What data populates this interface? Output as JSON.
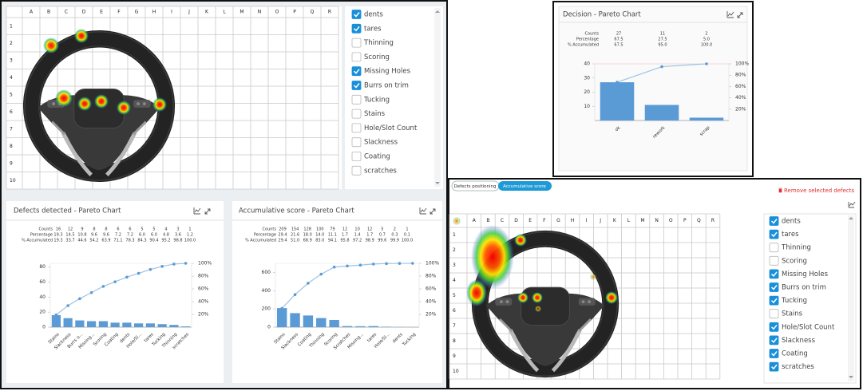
{
  "grid": {
    "columns": [
      "A",
      "B",
      "C",
      "D",
      "E",
      "F",
      "G",
      "H",
      "I",
      "J",
      "K",
      "L",
      "M",
      "N",
      "O",
      "P",
      "Q",
      "R"
    ],
    "rows": [
      1,
      2,
      3,
      4,
      5,
      6,
      7,
      8,
      9,
      10
    ]
  },
  "filters": {
    "labels": [
      "dents",
      "tares",
      "Thinning",
      "Scoring",
      "Missing Holes",
      "Burrs on trim",
      "Tucking",
      "Stains",
      "Hole/Slot Count",
      "Slackness",
      "Coating",
      "scratches"
    ],
    "checked_top": [
      true,
      true,
      false,
      false,
      true,
      true,
      false,
      false,
      false,
      false,
      false,
      false
    ],
    "checked_bottom": [
      true,
      true,
      false,
      false,
      true,
      true,
      true,
      false,
      true,
      true,
      true,
      true
    ]
  },
  "tabs": [
    "Defects positioning",
    "Accumulative score"
  ],
  "remove_button": "Remove selected defects",
  "chart_data": [
    {
      "type": "pareto",
      "title": "Defects detected - Pareto Chart",
      "table_labels": [
        "Counts",
        "Percentage",
        "% Accumulated"
      ],
      "categories": [
        "Stains",
        "Slackness",
        "Burrs o...",
        "Missing...",
        "Scoring",
        "Coating",
        "dents",
        "Hole/Sl...",
        "tares",
        "Tucking",
        "Thinning",
        "scratches"
      ],
      "percentages": [
        "19.3",
        "14.5",
        "10.8",
        "9.6",
        "9.6",
        "7.2",
        "7.2",
        "6.0",
        "6.0",
        "4.8",
        "3.6",
        "1.2"
      ],
      "series": [
        {
          "name": "Counts",
          "color": "#5b9bd5",
          "values": [
            16,
            12,
            9,
            8,
            8,
            6,
            6,
            5,
            5,
            4,
            3,
            1
          ]
        },
        {
          "name": "% Accumulated",
          "color": "#9cc3e6",
          "axis": "y2",
          "values": [
            19.3,
            33.7,
            44.6,
            54.2,
            63.9,
            71.1,
            78.3,
            84.3,
            90.4,
            95.2,
            98.8,
            100
          ],
          "value_labels": [
            "19.3",
            "33.7",
            "44.6",
            "54.2",
            "63.9",
            "71.1",
            "78.3",
            "84.3",
            "90.4",
            "95.2",
            "98.8",
            "100.0"
          ]
        }
      ],
      "ylim": [
        0,
        85
      ],
      "yticks": [
        0,
        20,
        40,
        60,
        80
      ],
      "y2lim": [
        0,
        100
      ],
      "y2ticks": [
        {
          "value": 20,
          "label": "20%"
        },
        {
          "value": 40,
          "label": "40%"
        },
        {
          "value": 60,
          "label": "60%"
        },
        {
          "value": 80,
          "label": "80%"
        },
        {
          "value": 100,
          "label": "100%"
        }
      ],
      "grid": false
    },
    {
      "type": "pareto",
      "title": "Accumulative score - Pareto Chart",
      "table_labels": [
        "Counts",
        "Percentage",
        "% Accumulated"
      ],
      "categories": [
        "Stains",
        "Slackness",
        "Coating",
        "Thinning",
        "Scoring",
        "Scratches",
        "Missing...",
        "tares",
        "Hole/Sl...",
        "dents",
        "Tucking"
      ],
      "percentages": [
        "29.4",
        "21.6",
        "18.0",
        "14.0",
        "11.1",
        "1.7",
        "1.4",
        "1.7",
        "0.7",
        "0.3",
        "0.1"
      ],
      "series": [
        {
          "name": "Counts",
          "color": "#5b9bd5",
          "values": [
            209,
            154,
            128,
            100,
            79,
            12,
            10,
            12,
            5,
            2,
            1
          ]
        },
        {
          "name": "% Accumulated",
          "color": "#9cc3e6",
          "axis": "y2",
          "values": [
            29.4,
            51,
            68.9,
            83,
            94.1,
            95.8,
            97.2,
            98.9,
            99.6,
            99.9,
            100
          ],
          "value_labels": [
            "29.4",
            "51.0",
            "68.9",
            "83.0",
            "94.1",
            "95.8",
            "97.2",
            "98.9",
            "99.6",
            "99.9",
            "100.0"
          ]
        }
      ],
      "ylim": [
        0,
        700
      ],
      "yticks": [
        0,
        200,
        400,
        600
      ],
      "y2lim": [
        0,
        100
      ],
      "y2ticks": [
        {
          "value": 20,
          "label": "20%"
        },
        {
          "value": 40,
          "label": "40%"
        },
        {
          "value": 60,
          "label": "60%"
        },
        {
          "value": 80,
          "label": "80%"
        },
        {
          "value": 100,
          "label": "100%"
        }
      ],
      "grid": false
    },
    {
      "type": "pareto",
      "title": "Decision - Pareto Chart",
      "table_labels": [
        "Counts",
        "Percentage",
        "% Accumulated"
      ],
      "categories": [
        "ok",
        "rework",
        "scrap"
      ],
      "percentages": [
        "67.5",
        "27.5",
        "5.0"
      ],
      "series": [
        {
          "name": "Counts",
          "color": "#5b9bd5",
          "values": [
            27,
            11,
            2
          ]
        },
        {
          "name": "% Accumulated",
          "color": "#9cc3e6",
          "axis": "y2",
          "values": [
            67.5,
            95,
            100
          ],
          "value_labels": [
            "67.5",
            "95.0",
            "100.0"
          ]
        }
      ],
      "ylim": [
        0,
        40
      ],
      "yticks": [
        10,
        20,
        30,
        40
      ],
      "y2lim": [
        0,
        100
      ],
      "y2ticks": [
        {
          "value": 20,
          "label": "20%"
        },
        {
          "value": 40,
          "label": "40%"
        },
        {
          "value": 60,
          "label": "60%"
        },
        {
          "value": 80,
          "label": "80%"
        },
        {
          "value": 100,
          "label": "100%"
        }
      ],
      "grid": false
    }
  ]
}
